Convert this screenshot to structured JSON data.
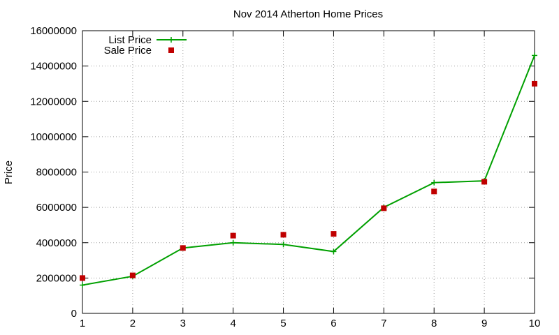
{
  "chart_data": {
    "type": "line",
    "title": "Nov 2014 Atherton Home Prices",
    "xlabel": "",
    "ylabel": "Price",
    "x": [
      1,
      2,
      3,
      4,
      5,
      6,
      7,
      8,
      9,
      10
    ],
    "xlim": [
      1,
      10
    ],
    "ylim": [
      0,
      16000000
    ],
    "xticks": [
      "1",
      "2",
      "3",
      "4",
      "5",
      "6",
      "7",
      "8",
      "9",
      "10"
    ],
    "yticks": [
      "0",
      "2000000",
      "4000000",
      "6000000",
      "8000000",
      "10000000",
      "12000000",
      "14000000",
      "16000000"
    ],
    "grid": true,
    "legend_position": "top-left",
    "series": [
      {
        "name": "List Price",
        "style": "lines-points",
        "marker": "plus",
        "color": "#00a000",
        "values": [
          1600000,
          2100000,
          3700000,
          4000000,
          3900000,
          3500000,
          6000000,
          7400000,
          7500000,
          14600000
        ]
      },
      {
        "name": "Sale Price",
        "style": "points",
        "marker": "square",
        "color": "#c00000",
        "values": [
          2000000,
          2150000,
          3700000,
          4400000,
          4450000,
          4500000,
          5950000,
          6900000,
          7450000,
          13000000
        ]
      }
    ]
  }
}
